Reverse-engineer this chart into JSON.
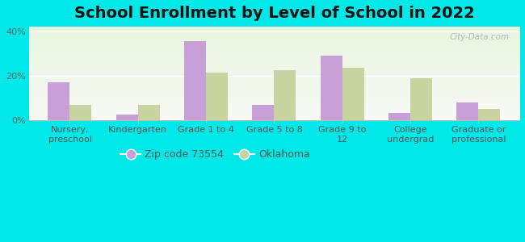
{
  "title": "School Enrollment by Level of School in 2022",
  "categories": [
    "Nursery,\npreschool",
    "Kindergarten",
    "Grade 1 to 4",
    "Grade 5 to 8",
    "Grade 9 to\n12",
    "College\nundergrad",
    "Graduate or\nprofessional"
  ],
  "zip_values": [
    17.0,
    2.5,
    35.5,
    7.0,
    29.0,
    3.5,
    8.0
  ],
  "ok_values": [
    7.0,
    7.0,
    21.5,
    22.5,
    23.5,
    19.0,
    5.0
  ],
  "zip_color": "#c8a0d8",
  "ok_color": "#c8d4a0",
  "background_color": "#00e8e8",
  "ylim": [
    0,
    42
  ],
  "yticks": [
    0,
    20,
    40
  ],
  "ytick_labels": [
    "0%",
    "20%",
    "40%"
  ],
  "legend_zip_label": "Zip code 73554",
  "legend_ok_label": "Oklahoma",
  "watermark": "City-Data.com",
  "title_fontsize": 14,
  "tick_fontsize": 8,
  "legend_fontsize": 9,
  "bar_width": 0.32
}
